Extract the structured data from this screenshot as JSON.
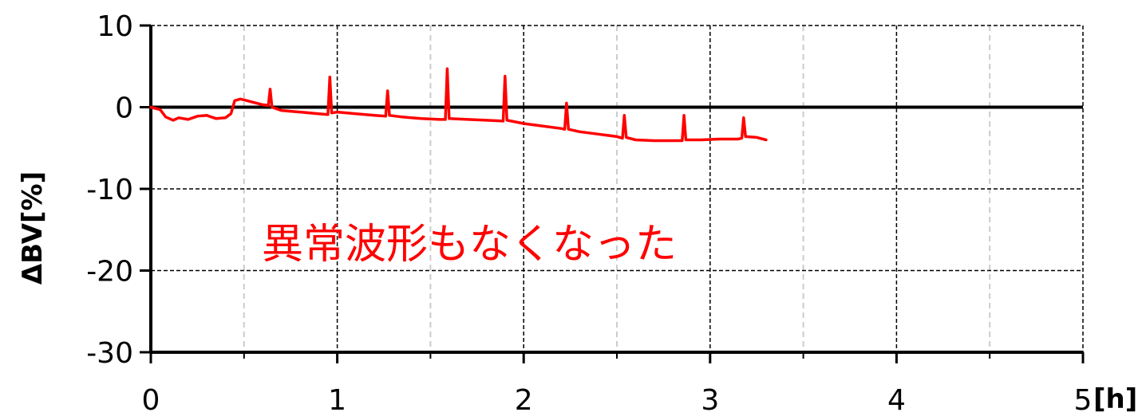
{
  "chart_data": {
    "type": "line",
    "xlabel": "[h]",
    "ylabel": "ΔBV[%]",
    "xlim": [
      0,
      5
    ],
    "ylim": [
      -30,
      10
    ],
    "x_ticks": [
      0,
      1,
      2,
      3,
      4,
      5
    ],
    "x_tick_labels": [
      "0",
      "1",
      "2",
      "3",
      "4",
      "5"
    ],
    "y_ticks": [
      10,
      0,
      -10,
      -20,
      -30
    ],
    "y_tick_labels": [
      "10",
      "0",
      "-10",
      "-20",
      "-30"
    ],
    "grid": true,
    "annotation": "異常波形もなくなった",
    "colors": {
      "series": "#ff0000",
      "annotation": "#ff0000",
      "axis": "#000000",
      "minor_grid": "#cccccc",
      "major_grid": "#000000"
    },
    "series": [
      {
        "x": [
          0,
          0.05,
          0.08,
          0.12,
          0.15,
          0.2,
          0.25,
          0.3,
          0.35,
          0.4,
          0.43,
          0.45,
          0.48,
          0.5,
          0.55,
          0.6,
          0.63,
          0.64,
          0.65,
          0.7,
          0.8,
          0.9,
          0.95,
          0.96,
          0.97,
          1.0,
          1.1,
          1.2,
          1.26,
          1.27,
          1.28,
          1.35,
          1.45,
          1.55,
          1.58,
          1.59,
          1.6,
          1.7,
          1.8,
          1.89,
          1.9,
          1.91,
          2.0,
          2.1,
          2.2,
          2.22,
          2.23,
          2.24,
          2.3,
          2.4,
          2.5,
          2.53,
          2.54,
          2.55,
          2.6,
          2.7,
          2.8,
          2.85,
          2.86,
          2.87,
          2.95,
          3.05,
          3.15,
          3.17,
          3.18,
          3.19,
          3.25,
          3.3
        ],
        "y": [
          0,
          -0.3,
          -1.2,
          -1.6,
          -1.3,
          -1.5,
          -1.1,
          -1.0,
          -1.4,
          -1.3,
          -0.8,
          0.8,
          1.0,
          0.9,
          0.6,
          0.3,
          0.2,
          2.2,
          0.0,
          -0.4,
          -0.6,
          -0.8,
          -0.9,
          3.7,
          -0.7,
          -0.6,
          -0.8,
          -1.0,
          -1.1,
          2.0,
          -1.0,
          -1.2,
          -1.4,
          -1.5,
          -1.5,
          4.7,
          -1.4,
          -1.5,
          -1.6,
          -1.7,
          3.8,
          -1.6,
          -2.0,
          -2.3,
          -2.6,
          -2.7,
          0.5,
          -2.7,
          -3.0,
          -3.3,
          -3.6,
          -3.8,
          -1.0,
          -3.7,
          -4.0,
          -4.1,
          -4.1,
          -4.1,
          -1.0,
          -4.0,
          -4.0,
          -3.9,
          -3.9,
          -3.8,
          -1.3,
          -3.6,
          -3.7,
          -4.0
        ]
      }
    ]
  }
}
